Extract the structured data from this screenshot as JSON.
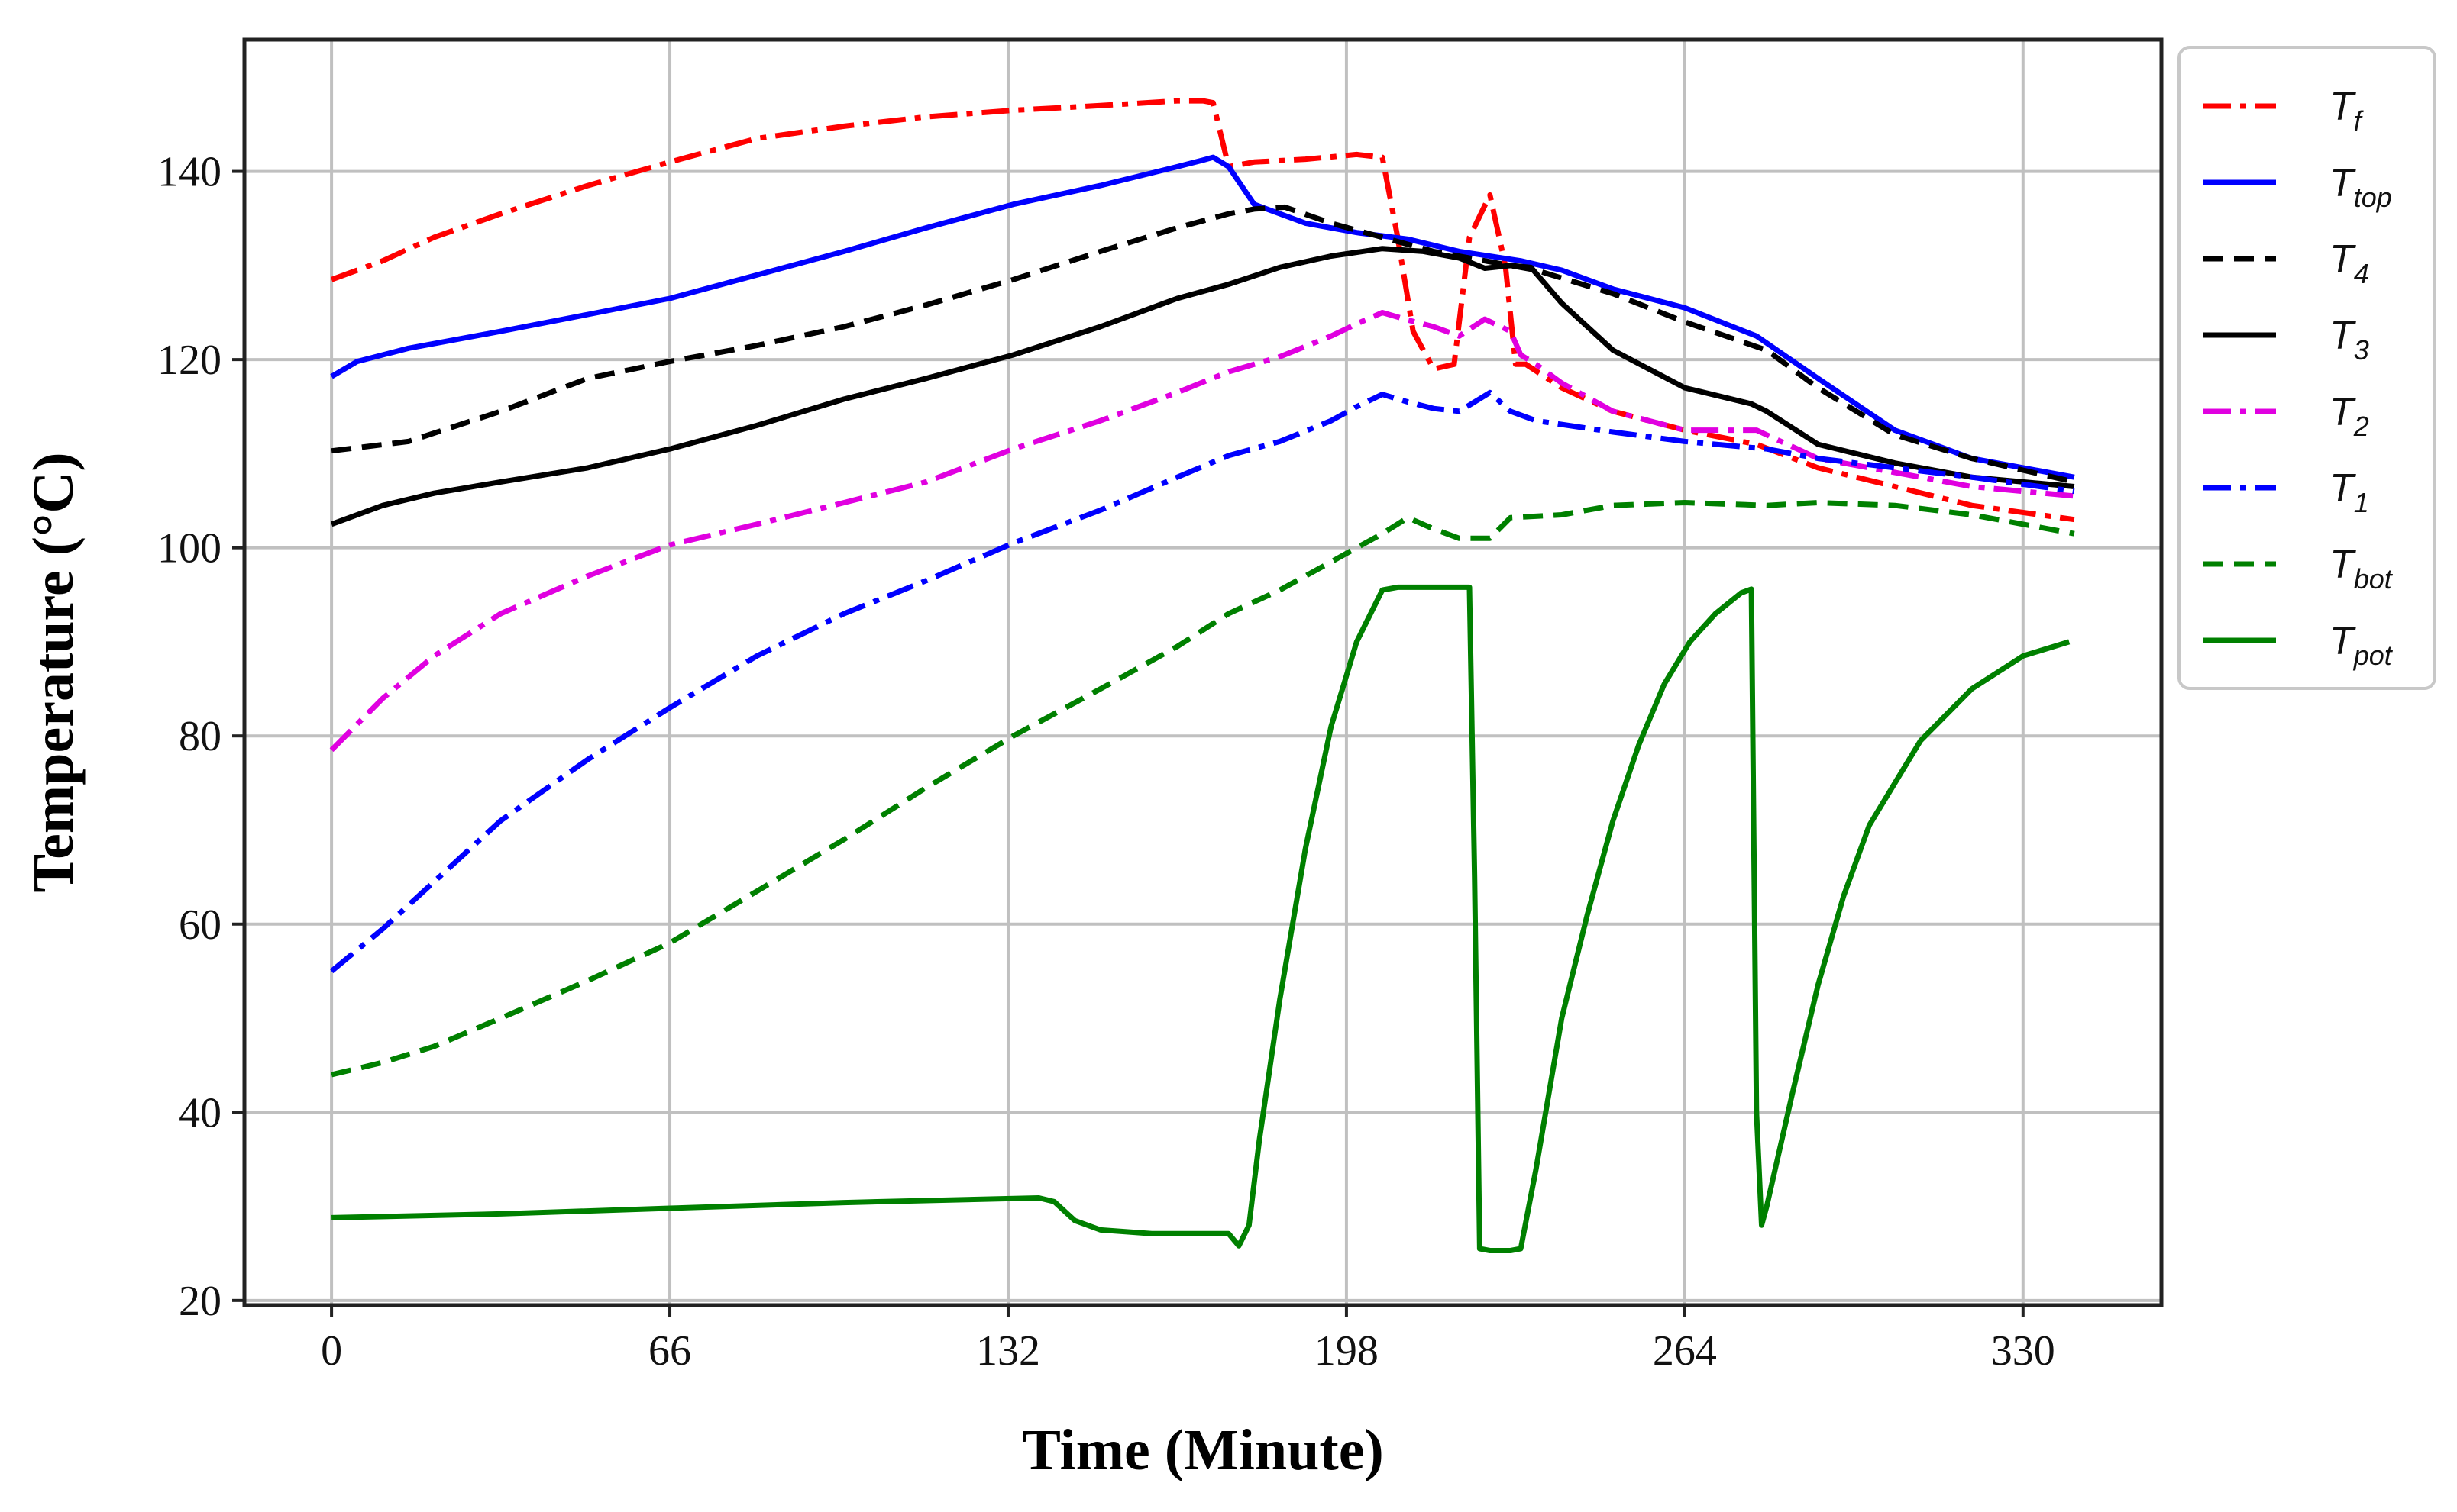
{
  "chart_data": {
    "type": "line",
    "title": "",
    "xlabel": "Time (Minute)",
    "ylabel": "Temperature  (°C)",
    "xlim": [
      -17,
      357
    ],
    "ylim": [
      19.5,
      154
    ],
    "xticks": [
      0,
      66,
      132,
      198,
      264,
      330
    ],
    "yticks": [
      20,
      40,
      60,
      80,
      100,
      120,
      140
    ],
    "grid": true,
    "legend_position": "outside-right-top",
    "series": [
      {
        "name": "T_f",
        "base": "T",
        "sub": "f",
        "color": "#ff0000",
        "dash": "dashdot",
        "x": [
          0,
          10,
          20,
          33,
          50,
          66,
          83,
          100,
          116,
          133,
          150,
          165,
          170,
          172,
          175,
          180,
          190,
          200,
          205,
          208,
          211,
          215,
          219,
          222,
          226,
          229,
          231,
          232,
          233,
          240,
          250,
          264,
          278,
          290,
          305,
          320,
          340
        ],
        "y": [
          128.5,
          130.5,
          133,
          135.5,
          138.5,
          141,
          143.5,
          144.8,
          145.8,
          146.5,
          147,
          147.5,
          147.5,
          147.3,
          140.5,
          141,
          141.3,
          141.8,
          141.5,
          133,
          123,
          119,
          119.5,
          133,
          137.5,
          130,
          119.5,
          119.5,
          119.5,
          117,
          114.5,
          112.5,
          111,
          108.5,
          106.5,
          104.5,
          103
        ]
      },
      {
        "name": "T_top",
        "base": "T",
        "sub": "top",
        "color": "#0000ff",
        "dash": "solid",
        "x": [
          0,
          5,
          15,
          33,
          50,
          66,
          83,
          100,
          116,
          133,
          150,
          165,
          170,
          172,
          175,
          180,
          190,
          200,
          210,
          220,
          232,
          240,
          250,
          264,
          278,
          290,
          305,
          320,
          340
        ],
        "y": [
          118.2,
          119.8,
          121.2,
          123,
          124.8,
          126.5,
          129,
          131.5,
          134,
          136.5,
          138.5,
          140.5,
          141.2,
          141.5,
          140.5,
          136.5,
          134.5,
          133.5,
          132.8,
          131.5,
          130.5,
          129.5,
          127.5,
          125.5,
          122.5,
          118,
          112.5,
          109.5,
          107.5
        ]
      },
      {
        "name": "T_4",
        "base": "T",
        "sub": "4",
        "color": "#000000",
        "dash": "dashed",
        "x": [
          0,
          15,
          33,
          50,
          66,
          83,
          100,
          116,
          133,
          150,
          165,
          175,
          180,
          186,
          195,
          205,
          215,
          225,
          235,
          250,
          264,
          280,
          290,
          305,
          320,
          340
        ],
        "y": [
          110.3,
          111.3,
          114.5,
          118,
          119.8,
          121.5,
          123.5,
          125.8,
          128.5,
          131.5,
          134,
          135.5,
          136,
          136.2,
          134.5,
          133,
          131.5,
          130.5,
          129.5,
          127,
          124,
          121,
          117,
          112,
          109.5,
          107
        ]
      },
      {
        "name": "T_3",
        "base": "T",
        "sub": "3",
        "color": "#000000",
        "dash": "solid",
        "x": [
          0,
          10,
          20,
          33,
          50,
          66,
          83,
          100,
          116,
          133,
          150,
          165,
          175,
          185,
          195,
          205,
          213,
          220,
          225,
          230,
          234,
          240,
          250,
          264,
          277,
          280,
          290,
          305,
          320,
          340
        ],
        "y": [
          102.5,
          104.5,
          105.8,
          107,
          108.5,
          110.5,
          113,
          115.8,
          118,
          120.5,
          123.5,
          126.5,
          128,
          129.8,
          131,
          131.8,
          131.5,
          130.8,
          129.7,
          130,
          129.8,
          126,
          121,
          117,
          115.3,
          114.5,
          111,
          109,
          107.5,
          106.5
        ]
      },
      {
        "name": "T_2",
        "base": "T",
        "sub": "2",
        "color": "#e000e0",
        "dash": "dashdot",
        "x": [
          0,
          10,
          20,
          33,
          50,
          66,
          83,
          100,
          116,
          133,
          150,
          165,
          175,
          185,
          195,
          200,
          205,
          210,
          215,
          220,
          225,
          230,
          232,
          235,
          240,
          250,
          264,
          278,
          290,
          305,
          320,
          340
        ],
        "y": [
          78.5,
          84,
          88.5,
          93,
          97,
          100.3,
          102.5,
          104.8,
          107,
          110.5,
          113.5,
          116.5,
          118.7,
          120.3,
          122.5,
          123.8,
          125,
          124.2,
          123.5,
          122.5,
          124.3,
          123,
          120.5,
          119.5,
          117.5,
          114.5,
          112.5,
          112.5,
          109.5,
          108,
          106.5,
          105.5
        ]
      },
      {
        "name": "T_1",
        "base": "T",
        "sub": "1",
        "color": "#0000ff",
        "dash": "dashdot",
        "x": [
          0,
          10,
          20,
          33,
          50,
          66,
          83,
          100,
          116,
          133,
          150,
          165,
          175,
          185,
          195,
          200,
          205,
          210,
          215,
          220,
          226,
          230,
          235,
          250,
          264,
          280,
          290,
          305,
          320,
          340
        ],
        "y": [
          55,
          59.5,
          64.5,
          71,
          77.5,
          83,
          88.5,
          93,
          96.5,
          100.5,
          104,
          107.5,
          109.8,
          111.3,
          113.5,
          115,
          116.3,
          115.5,
          114.8,
          114.5,
          116.5,
          114.5,
          113.5,
          112.3,
          111.3,
          110.5,
          109.5,
          108.5,
          107.5,
          106
        ]
      },
      {
        "name": "T_bot",
        "base": "T",
        "sub": "bot",
        "color": "#008000",
        "dash": "dashed",
        "x": [
          0,
          10,
          20,
          33,
          50,
          66,
          83,
          100,
          116,
          133,
          150,
          165,
          175,
          185,
          195,
          205,
          210,
          215,
          220,
          226,
          230,
          240,
          250,
          264,
          280,
          290,
          305,
          320,
          340
        ],
        "y": [
          44,
          45.3,
          47,
          50,
          54,
          58,
          63.5,
          69,
          74.5,
          80,
          85,
          89.5,
          93,
          95.5,
          98.5,
          101.5,
          103.2,
          102,
          101,
          101,
          103.2,
          103.5,
          104.5,
          104.8,
          104.5,
          104.8,
          104.5,
          103.5,
          101.5
        ]
      },
      {
        "name": "T_pot",
        "base": "T",
        "sub": "pot",
        "color": "#008000",
        "dash": "solid",
        "x": [
          0,
          33,
          66,
          100,
          130,
          138,
          141,
          145,
          150,
          160,
          170,
          175,
          177,
          179,
          181,
          185,
          190,
          195,
          200,
          205,
          208,
          215,
          222,
          223,
          224,
          226,
          230,
          232,
          235,
          240,
          245,
          250,
          255,
          260,
          265,
          270,
          275,
          277,
          278,
          279,
          280,
          285,
          290,
          295,
          300,
          310,
          320,
          330,
          339
        ],
        "y": [
          28.8,
          29.2,
          29.8,
          30.4,
          30.8,
          30.9,
          30.5,
          28.5,
          27.5,
          27.1,
          27.1,
          27.1,
          25.8,
          28,
          37,
          52,
          68,
          81,
          90,
          95.5,
          95.8,
          95.8,
          95.8,
          65,
          25.5,
          25.3,
          25.3,
          25.5,
          34,
          50,
          61,
          71,
          79,
          85.5,
          90,
          93,
          95.2,
          95.6,
          40,
          28,
          30,
          42,
          53.5,
          63,
          70.5,
          79.5,
          85,
          88.5,
          90
        ]
      }
    ]
  }
}
